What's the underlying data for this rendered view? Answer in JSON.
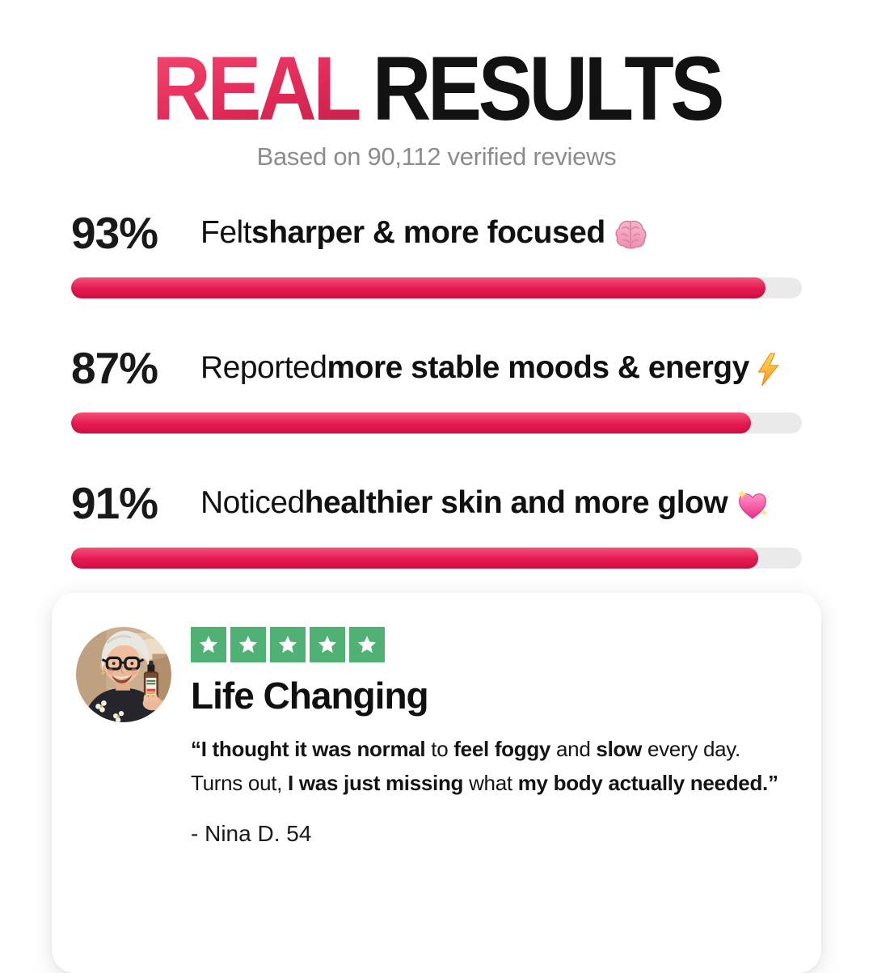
{
  "header": {
    "title_accent": "REAL",
    "title_rest": "RESULTS",
    "subtitle": "Based on 90,112 verified reviews"
  },
  "chart_data": {
    "type": "bar",
    "title": "REAL RESULTS",
    "subtitle": "Based on 90,112 verified reviews",
    "categories": [
      "Felt sharper & more focused",
      "Reported more stable moods & energy",
      "Noticed healthier skin and more glow"
    ],
    "values": [
      93,
      87,
      91
    ],
    "unit": "%",
    "xlim": [
      0,
      100
    ],
    "orientation": "horizontal",
    "bar_color": "#E41952",
    "track_color": "#EAEAEA"
  },
  "stats": {
    "items": [
      {
        "percent": "93%",
        "value": 93,
        "bar_fill_percent": 95,
        "icon": "brain-emoji",
        "segments": [
          {
            "text": "Felt "
          },
          {
            "text": "sharper & more focused"
          }
        ]
      },
      {
        "percent": "87%",
        "value": 87,
        "bar_fill_percent": 93,
        "icon": "lightning-bolt-emoji",
        "segments": [
          {
            "text": "Reported "
          },
          {
            "text": "more stable moods & energy"
          }
        ]
      },
      {
        "percent": "91%",
        "value": 91,
        "bar_fill_percent": 94,
        "icon": "sparkling-heart-emoji",
        "segments": [
          {
            "text": "Noticed "
          },
          {
            "text": "healthier skin and more glow"
          }
        ]
      }
    ]
  },
  "review": {
    "rating_stars": 5,
    "avatar": "smiling-older-woman-with-glasses-holding-supplement-bottle",
    "title": "Life Changing",
    "quote": {
      "line1": [
        {
          "text": "“I thought it was normal"
        },
        {
          "text": " to "
        },
        {
          "text": "feel foggy"
        },
        {
          "text": " and "
        },
        {
          "text": "slow"
        },
        {
          "text": " every day."
        }
      ],
      "line2": [
        {
          "text": "Turns out, "
        },
        {
          "text": "I was just missing"
        },
        {
          "text": " what "
        },
        {
          "text": "my body actually needed.”"
        }
      ]
    },
    "byline": "- Nina D. 54"
  },
  "colors": {
    "accent_pink": "#E22A58",
    "bar_track": "#EAEAEA",
    "star_green": "#4FB274",
    "text_gray": "#8C8C8C",
    "text_dark": "#111111"
  }
}
